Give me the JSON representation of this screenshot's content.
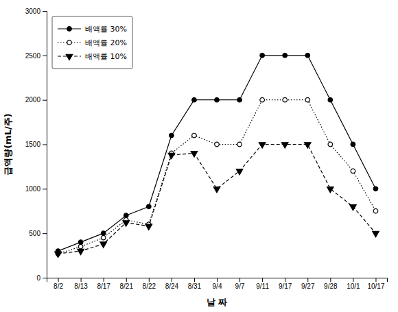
{
  "chart_data": {
    "type": "line",
    "x_label": "날 짜",
    "y_label": "급액량(mL/주)",
    "categories": [
      "8/2",
      "8/13",
      "8/17",
      "8/21",
      "8/22",
      "8/24",
      "8/31",
      "9/4",
      "9/7",
      "9/11",
      "9/17",
      "9/27",
      "9/28",
      "10/1",
      "10/17"
    ],
    "series": [
      {
        "name": "배액률 30%",
        "color": "#000000",
        "marker": "circle",
        "line_style": "solid",
        "values": [
          300,
          400,
          500,
          700,
          800,
          1600,
          2000,
          2000,
          2000,
          2500,
          2500,
          2500,
          2000,
          1500,
          1000
        ]
      },
      {
        "name": "배액률 20%",
        "color": "#000000",
        "marker": "circle-open",
        "line_style": "dotted",
        "values": [
          270,
          350,
          450,
          650,
          600,
          1400,
          1600,
          1500,
          1500,
          2000,
          2000,
          2000,
          1500,
          1200,
          750
        ]
      },
      {
        "name": "배액률 10%",
        "color": "#000000",
        "marker": "triangle-down",
        "line_style": "dashed",
        "values": [
          270,
          300,
          380,
          620,
          580,
          1380,
          1400,
          1000,
          1200,
          1500,
          1500,
          1500,
          1000,
          800,
          500
        ]
      }
    ],
    "ylim": [
      0,
      3000
    ],
    "yticks": [
      0,
      500,
      1000,
      1500,
      2000,
      2500,
      3000
    ],
    "grid": false,
    "legend": "upper left"
  }
}
